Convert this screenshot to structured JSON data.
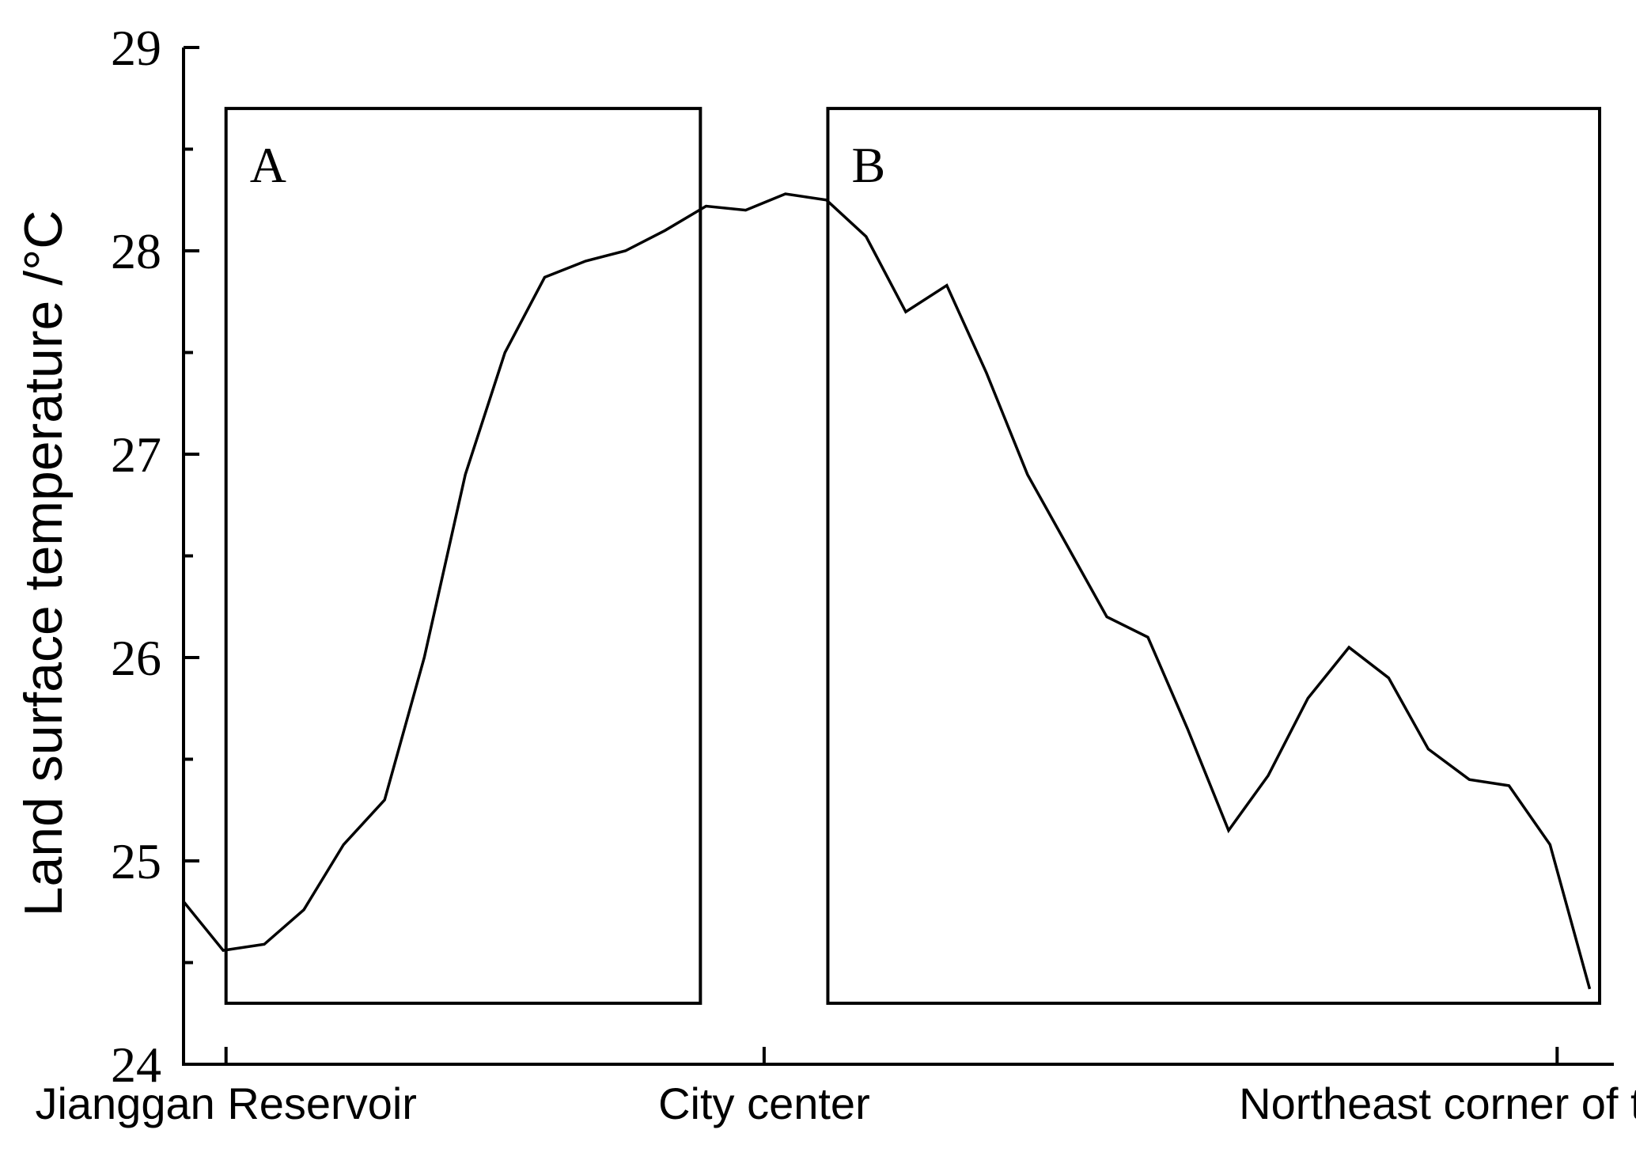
{
  "chart_data": {
    "type": "line",
    "ylabel": "Land surface temperature /°C",
    "xlabel": "",
    "ylim": [
      24,
      29
    ],
    "yticks": [
      24,
      25,
      26,
      27,
      28,
      29
    ],
    "grid": false,
    "xlim": [
      0,
      1
    ],
    "x_category_labels": [
      {
        "text": "Jianggan Reservoir",
        "x": 0.03
      },
      {
        "text": "City center",
        "x": 0.41
      },
      {
        "text": "Northeast corner of the city",
        "x": 0.97
      }
    ],
    "regions": [
      {
        "label": "A",
        "x_range": [
          0.03,
          0.365
        ],
        "y_range": [
          24.3,
          28.7
        ]
      },
      {
        "label": "B",
        "x_range": [
          0.455,
          1.0
        ],
        "y_range": [
          24.3,
          28.7
        ]
      }
    ],
    "series": [
      {
        "x": [
          0.0,
          0.028,
          0.057,
          0.085,
          0.113,
          0.142,
          0.17,
          0.199,
          0.227,
          0.255,
          0.284,
          0.312,
          0.34,
          0.369,
          0.397,
          0.425,
          0.454,
          0.482,
          0.51,
          0.539,
          0.567,
          0.596,
          0.624,
          0.652,
          0.681,
          0.709,
          0.738,
          0.766,
          0.794,
          0.823,
          0.851,
          0.879,
          0.908,
          0.936,
          0.965,
          0.993
        ],
        "values": [
          24.8,
          24.56,
          24.59,
          24.76,
          25.08,
          25.3,
          26.0,
          26.9,
          27.5,
          27.87,
          27.95,
          28.0,
          28.1,
          28.22,
          28.2,
          28.28,
          28.25,
          28.07,
          27.7,
          27.83,
          27.4,
          26.9,
          26.55,
          26.2,
          26.1,
          25.65,
          25.15,
          25.42,
          25.8,
          26.05,
          25.9,
          25.55,
          25.4,
          25.37,
          25.08,
          24.37
        ]
      }
    ]
  }
}
